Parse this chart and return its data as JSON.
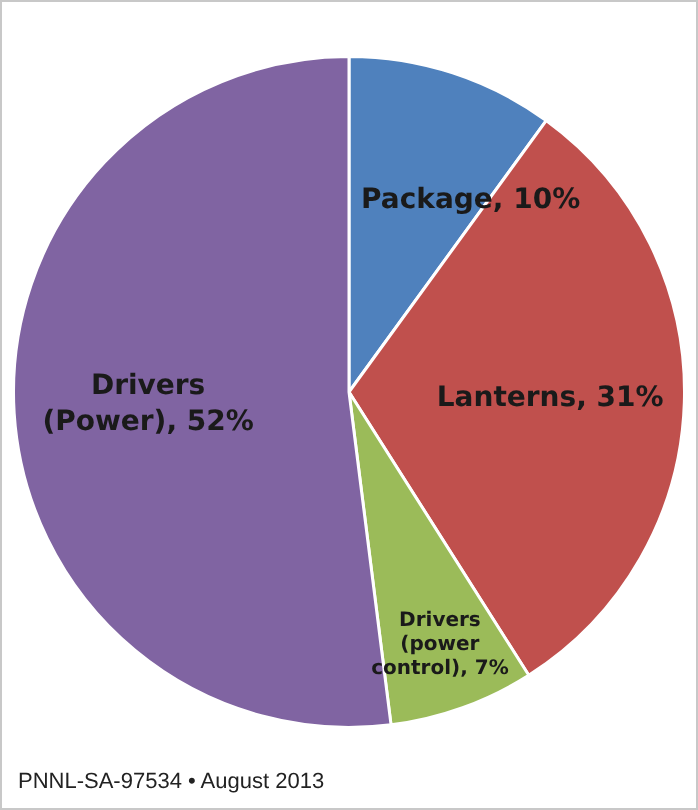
{
  "chart_data": {
    "type": "pie",
    "categories": [
      "Package",
      "Lanterns",
      "Drivers (power control)",
      "Drivers (Power)"
    ],
    "values": [
      10,
      31,
      7,
      52
    ],
    "colors": [
      "#4f81bd",
      "#c0504d",
      "#9bbb59",
      "#8064a2"
    ],
    "value_labels": [
      "10%",
      "31%",
      "7%",
      "52%"
    ],
    "annotations": [
      "PNNL-SA-97534 • August 2013"
    ]
  }
}
